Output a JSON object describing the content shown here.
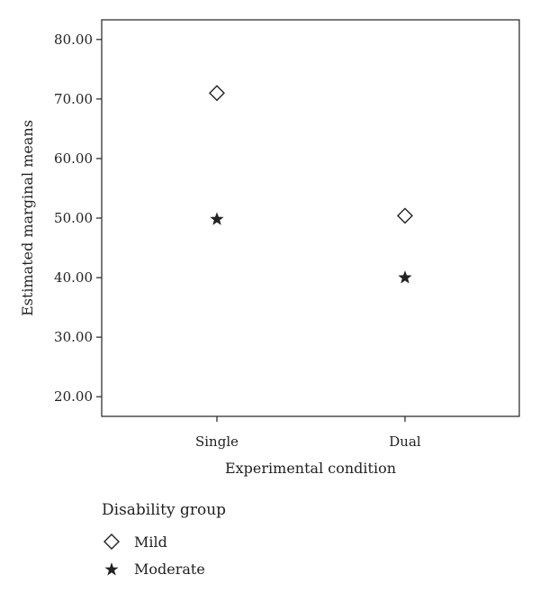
{
  "chart_data": {
    "type": "scatter",
    "title": "",
    "xlabel": "Experimental condition",
    "ylabel": "Estimated marginal means",
    "categories": [
      "Single",
      "Dual"
    ],
    "ylim": [
      16.7,
      83.3
    ],
    "yticks": [
      "20.00",
      "30.00",
      "40.00",
      "50.00",
      "60.00",
      "70.00",
      "80.00"
    ],
    "grid": false,
    "legend_position": "bottom-left",
    "legend_title": "Disability group",
    "series": [
      {
        "name": "Mild",
        "marker": "diamond-icon",
        "values": [
          71.0,
          50.4
        ]
      },
      {
        "name": "Moderate",
        "marker": "star-icon",
        "values": [
          49.8,
          40.0
        ]
      }
    ]
  }
}
